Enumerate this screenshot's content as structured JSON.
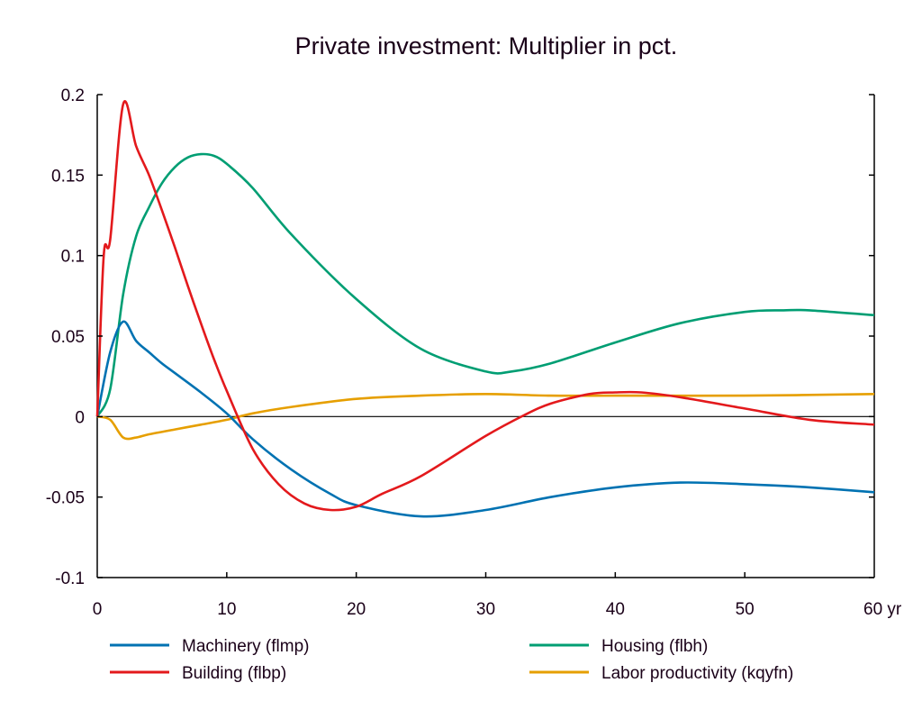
{
  "chart_data": {
    "type": "line",
    "title": "Private investment: Multiplier in pct.",
    "xlabel": "",
    "ylabel": "",
    "xlim": [
      0,
      60
    ],
    "ylim": [
      -0.1,
      0.2
    ],
    "x_unit": "yr",
    "x_ticks": [
      0,
      10,
      20,
      30,
      40,
      50,
      60
    ],
    "x_tick_labels": [
      "0",
      "10",
      "20",
      "30",
      "40",
      "50",
      "60 yr"
    ],
    "y_ticks": [
      -0.1,
      -0.05,
      0,
      0.05,
      0.1,
      0.15,
      0.2
    ],
    "y_tick_labels": [
      "-0.1",
      "-0.05",
      "0",
      "0.05",
      "0.1",
      "0.15",
      "0.2"
    ],
    "grid": false,
    "zero_line": true,
    "legend_position": "bottom",
    "series": [
      {
        "name": "Machinery (flmp)",
        "color": "#0072b2",
        "x": [
          0,
          1,
          2,
          3,
          4,
          5,
          6,
          8,
          10,
          12,
          15,
          18,
          20,
          25,
          30,
          35,
          40,
          45,
          50,
          55,
          60
        ],
        "y": [
          0,
          0.04,
          0.059,
          0.047,
          0.04,
          0.033,
          0.027,
          0.015,
          0.002,
          -0.014,
          -0.033,
          -0.048,
          -0.055,
          -0.062,
          -0.058,
          -0.05,
          -0.044,
          -0.041,
          -0.042,
          -0.044,
          -0.047
        ]
      },
      {
        "name": "Housing (flbh)",
        "color": "#009e73",
        "x": [
          0,
          1,
          2,
          3,
          4,
          5,
          6,
          7,
          8,
          9,
          10,
          12,
          15,
          20,
          25,
          30,
          32,
          35,
          40,
          45,
          50,
          53,
          55,
          60
        ],
        "y": [
          0,
          0.017,
          0.076,
          0.112,
          0.13,
          0.145,
          0.155,
          0.161,
          0.163,
          0.162,
          0.157,
          0.142,
          0.113,
          0.073,
          0.042,
          0.028,
          0.028,
          0.033,
          0.046,
          0.058,
          0.065,
          0.066,
          0.066,
          0.063
        ]
      },
      {
        "name": "Building (flbp)",
        "color": "#e3191c",
        "x": [
          0,
          0.5,
          1,
          2,
          3,
          4,
          5,
          6,
          7,
          8,
          9,
          10,
          12,
          14,
          16,
          18,
          20,
          22,
          25,
          30,
          33,
          35,
          38,
          40,
          42,
          45,
          50,
          55,
          60
        ],
        "y": [
          0,
          0.1,
          0.11,
          0.194,
          0.168,
          0.15,
          0.128,
          0.105,
          0.081,
          0.058,
          0.036,
          0.016,
          -0.02,
          -0.042,
          -0.054,
          -0.058,
          -0.056,
          -0.048,
          -0.037,
          -0.012,
          0.001,
          0.008,
          0.014,
          0.015,
          0.015,
          0.012,
          0.005,
          -0.002,
          -0.005
        ]
      },
      {
        "name": "Labor productivity (kqyfn)",
        "color": "#e69f00",
        "x": [
          0,
          1,
          2,
          3,
          4,
          6,
          8,
          10,
          12,
          15,
          20,
          25,
          30,
          35,
          40,
          50,
          60
        ],
        "y": [
          0,
          -0.002,
          -0.013,
          -0.013,
          -0.011,
          -0.008,
          -0.005,
          -0.002,
          0.002,
          0.006,
          0.011,
          0.013,
          0.014,
          0.013,
          0.013,
          0.013,
          0.014
        ]
      }
    ]
  }
}
